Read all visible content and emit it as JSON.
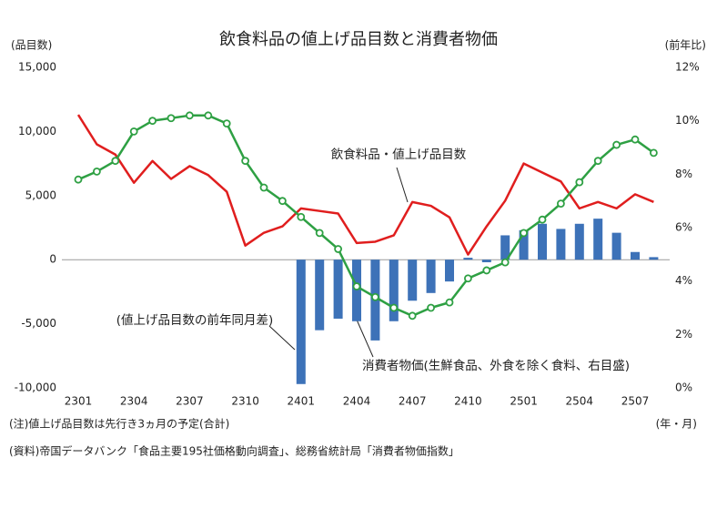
{
  "chart_data": {
    "type": "combo",
    "title": "飲食料品の値上げ品目数と消費者物価",
    "y_label": "(品目数)",
    "y2_label": "(前年比)",
    "x_label": "(年・月)",
    "notes": [
      "(注)値上げ品目数は先行き3ヵ月の予定(合計)",
      "(資料)帝国データバンク「食品主要195社価格動向調査」、総務省統計局「消費者物価指数」"
    ],
    "categories": [
      "2301",
      null,
      null,
      "2304",
      null,
      null,
      "2307",
      null,
      null,
      "2310",
      null,
      null,
      "2401",
      null,
      null,
      "2404",
      null,
      null,
      "2407",
      null,
      null,
      "2410",
      null,
      null,
      "2501",
      null,
      null,
      "2504",
      null,
      null,
      "2507",
      null
    ],
    "ylim": [
      -10000,
      15000
    ],
    "yticks": [
      {
        "value": -10000,
        "label": "-10,000"
      },
      {
        "value": -5000,
        "label": "-5,000"
      },
      0,
      {
        "value": 5000,
        "label": "5,000"
      },
      {
        "value": 10000,
        "label": "10,000"
      },
      {
        "value": 15000,
        "label": "15,000"
      }
    ],
    "y2lim": [
      0,
      12
    ],
    "y2ticks": [
      {
        "value": 0,
        "label": "0%"
      },
      {
        "value": 2,
        "label": "2%"
      },
      {
        "value": 4,
        "label": "4%"
      },
      {
        "value": 6,
        "label": "6%"
      },
      {
        "value": 8,
        "label": "8%"
      },
      {
        "value": 10,
        "label": "10%"
      },
      {
        "value": 12,
        "label": "12%"
      }
    ],
    "series": [
      {
        "name": "(値上げ品目数の前年同月差)",
        "type": "bar",
        "color": "#3d72b8",
        "values": [
          null,
          null,
          null,
          null,
          null,
          null,
          null,
          null,
          null,
          null,
          null,
          null,
          -9700,
          -5500,
          -4600,
          -4800,
          -6300,
          -4800,
          -3200,
          -2600,
          -1700,
          150,
          -200,
          1900,
          2300,
          2800,
          2400,
          2800,
          3200,
          2100,
          600,
          200
        ]
      },
      {
        "name": "飲食料品・値上げ品目数",
        "type": "line",
        "color": "#e01e1e",
        "values": [
          11300,
          9000,
          8200,
          6000,
          7700,
          6300,
          7300,
          6600,
          5300,
          1100,
          2100,
          2600,
          4000,
          3800,
          3600,
          1300,
          1400,
          1900,
          4500,
          4200,
          3300,
          400,
          2600,
          4600,
          7500,
          6800,
          6100,
          4000,
          4500,
          4000,
          5100,
          4500
        ]
      },
      {
        "name": "消費者物価(生鮮食品、外食を除く食料、右目盛)",
        "type": "line",
        "axis": "y2",
        "color": "#2ea043",
        "markers": true,
        "values": [
          7.8,
          8.1,
          8.5,
          9.6,
          10.0,
          10.1,
          10.2,
          10.2,
          9.9,
          8.5,
          7.5,
          7.0,
          6.4,
          5.8,
          5.2,
          3.8,
          3.4,
          3.0,
          2.7,
          3.0,
          3.2,
          4.1,
          4.4,
          4.7,
          5.8,
          6.3,
          6.9,
          7.7,
          8.5,
          9.1,
          9.3,
          8.8
        ]
      }
    ]
  }
}
